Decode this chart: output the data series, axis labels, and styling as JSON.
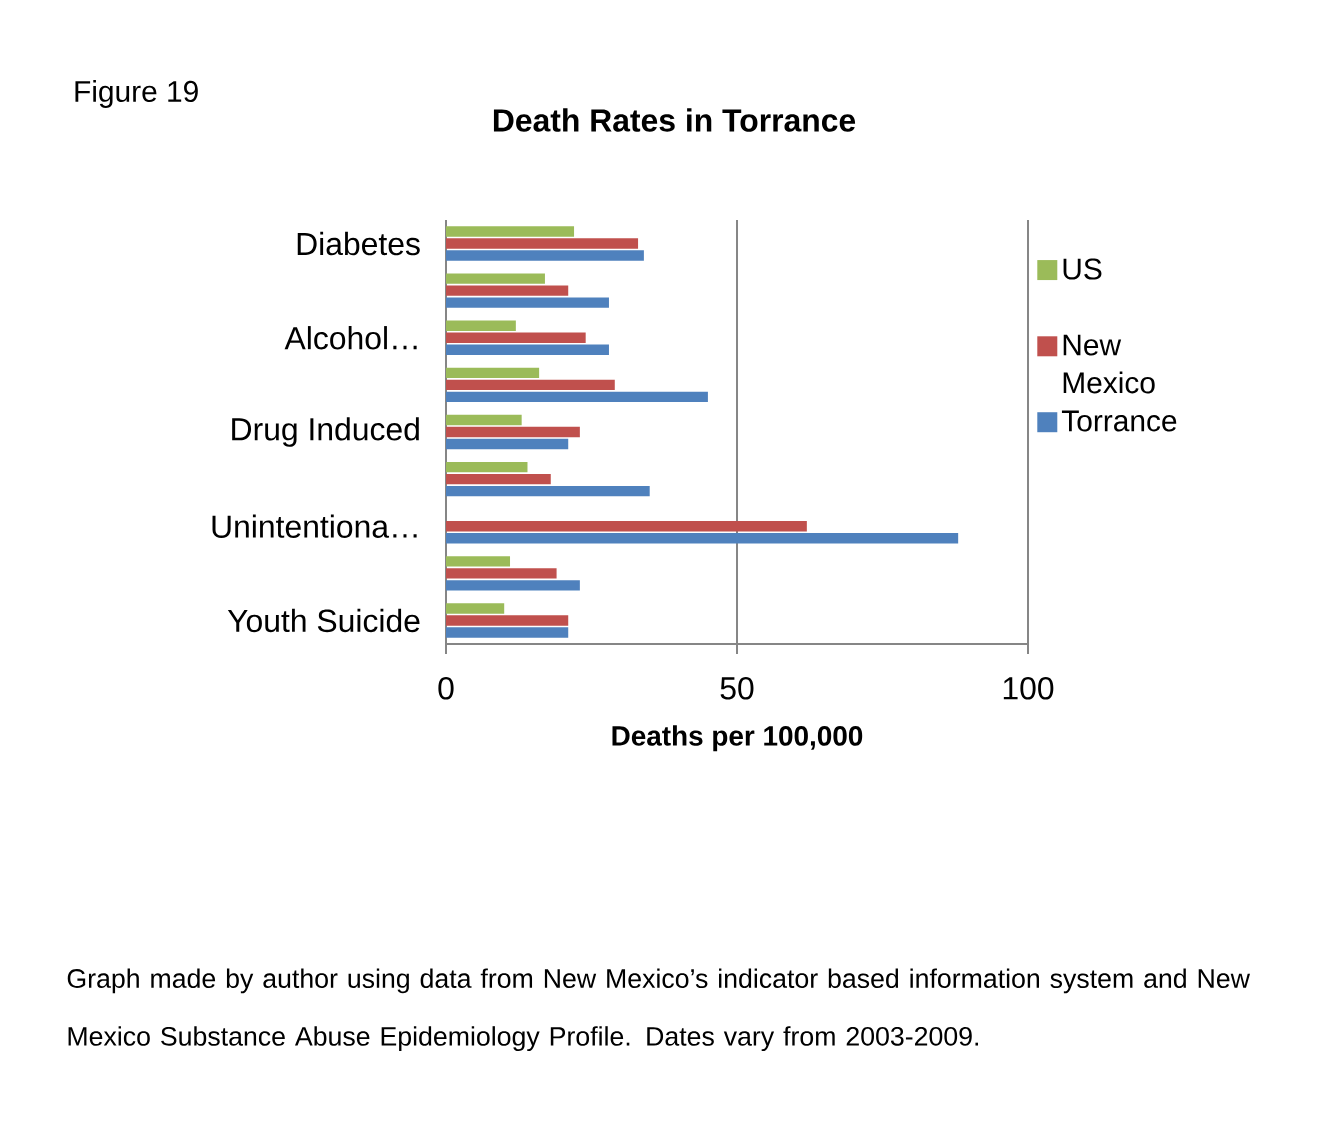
{
  "chart_data": {
    "type": "bar",
    "orientation": "horizontal",
    "title": "Death Rates in Torrance",
    "xlabel": "Deaths per 100,000",
    "categories": [
      "Diabetes",
      null,
      "Alcohol…",
      null,
      "Drug Induced",
      null,
      "Unintentiona…",
      null,
      "Youth Suicide"
    ],
    "series": [
      {
        "name": "US",
        "color": "#9bbb59",
        "values": [
          22,
          17,
          12,
          16,
          13,
          14,
          null,
          11,
          10
        ]
      },
      {
        "name": "New Mexico",
        "color": "#c0504d",
        "values": [
          33,
          21,
          24,
          29,
          23,
          18,
          62,
          19,
          21
        ]
      },
      {
        "name": "Torrance",
        "color": "#4f81bd",
        "values": [
          34,
          28,
          28,
          45,
          21,
          35,
          88,
          23,
          21
        ]
      }
    ],
    "xlim": [
      0,
      100
    ],
    "xticks": [
      0,
      50,
      100
    ],
    "grid": "x",
    "legend": "right",
    "annotations": [
      "Figure 19",
      "Graph made by author using data from New Mexico’s indicator based information system and New Mexico Substance Abuse Epidemiology Profile.  Dates vary from 2003-2009."
    ]
  }
}
